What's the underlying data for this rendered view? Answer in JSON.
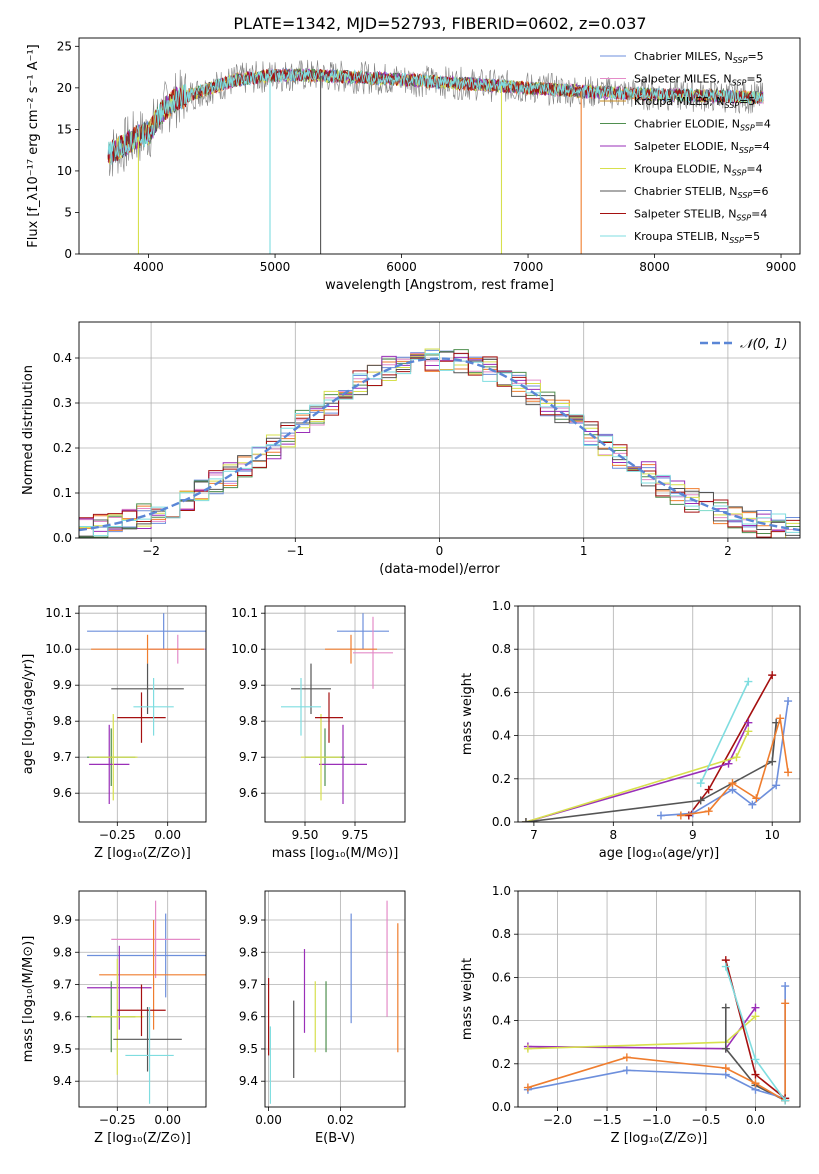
{
  "figure_title": "PLATE=1342, MJD=52793, FIBERID=0602, z=0.037",
  "colors": {
    "Chabrier MILES": "#6d8fdc",
    "Salpeter MILES": "#e48bc8",
    "Kroupa MILES": "#c68a1c",
    "Chabrier ELODIE": "#4f8f4f",
    "Salpeter ELODIE": "#9a2fb8",
    "Kroupa ELODIE": "#d7e04d",
    "Chabrier STELIB": "#555555",
    "Salpeter STELIB": "#a51010",
    "Kroupa STELIB": "#7fdde0",
    "orange": "#ef7d2e",
    "gaussian": "#5a86d6"
  },
  "chart_data": [
    {
      "id": "spectrum",
      "type": "line",
      "xlabel": "wavelength [Angstrom, rest frame]",
      "ylabel": "Flux [f_λ10⁻¹⁷ erg cm⁻² s⁻¹ A⁻¹]",
      "xlim": [
        3450,
        9150
      ],
      "ylim": [
        0,
        26
      ],
      "xticks": [
        4000,
        5000,
        6000,
        7000,
        8000,
        9000
      ],
      "yticks": [
        0,
        5,
        10,
        15,
        20,
        25
      ],
      "grid": false,
      "legend_position": "top-right",
      "legend": [
        {
          "label": "Chabrier MILES, N",
          "sub": "SSP",
          "suffix": "=5",
          "color": "#6d8fdc"
        },
        {
          "label": "Salpeter MILES, N",
          "sub": "SSP",
          "suffix": "=5",
          "color": "#e48bc8"
        },
        {
          "label": "Kroupa MILES, N",
          "sub": "SSP",
          "suffix": "=5",
          "color": "#c68a1c"
        },
        {
          "label": "Chabrier ELODIE, N",
          "sub": "SSP",
          "suffix": "=4",
          "color": "#4f8f4f"
        },
        {
          "label": "Salpeter ELODIE, N",
          "sub": "SSP",
          "suffix": "=4",
          "color": "#9a2fb8"
        },
        {
          "label": "Kroupa ELODIE, N",
          "sub": "SSP",
          "suffix": "=4",
          "color": "#d7e04d"
        },
        {
          "label": "Chabrier STELIB, N",
          "sub": "SSP",
          "suffix": "=6",
          "color": "#555555"
        },
        {
          "label": "Salpeter STELIB, N",
          "sub": "SSP",
          "suffix": "=4",
          "color": "#a51010"
        },
        {
          "label": "Kroupa STELIB, N",
          "sub": "SSP",
          "suffix": "=5",
          "color": "#7fdde0"
        }
      ],
      "continuum": {
        "x": [
          3680,
          3800,
          3900,
          4000,
          4100,
          4200,
          4300,
          4500,
          4700,
          5000,
          5300,
          5600,
          6000,
          6500,
          7000,
          7500,
          8000,
          8500,
          8850
        ],
        "y": [
          12,
          13,
          14,
          14.5,
          17,
          18.5,
          19,
          20,
          21,
          21.5,
          21.5,
          21.3,
          21,
          20.5,
          20,
          19.5,
          19.2,
          19.0,
          18.8
        ]
      },
      "spikes": [
        {
          "x": 3920,
          "y": 0,
          "color": "#d7e04d"
        },
        {
          "x": 4960,
          "y": 0,
          "color": "#7fdde0"
        },
        {
          "x": 5360,
          "y": 0,
          "color": "#555555"
        },
        {
          "x": 6790,
          "y": 0,
          "color": "#d7e04d"
        },
        {
          "x": 7420,
          "y": 0,
          "color": "#ef7d2e"
        }
      ]
    },
    {
      "id": "residual_hist",
      "type": "line",
      "xlabel": "(data-model)/error",
      "ylabel": "Normed distribution",
      "xlim": [
        -2.5,
        2.5
      ],
      "ylim": [
        0,
        0.48
      ],
      "xticks": [
        -2,
        -1,
        0,
        1,
        2
      ],
      "yticks": [
        0.0,
        0.1,
        0.2,
        0.3,
        0.4
      ],
      "grid": true,
      "legend_position": "top-right",
      "legend": [
        {
          "label": "N(0,1)",
          "color": "#5a86d6"
        }
      ],
      "bin_width": 0.1,
      "gaussian": {
        "mean": 0,
        "sigma": 1
      }
    },
    {
      "id": "age_vs_Z",
      "type": "scatter",
      "xlabel": "Z [log₁₀(Z/Z⊙)]",
      "ylabel": "age  [log₁₀(age/yr)]",
      "xlim": [
        -0.44,
        0.19
      ],
      "ylim": [
        9.52,
        10.12
      ],
      "xticks": [
        -0.25,
        0.0
      ],
      "yticks": [
        9.6,
        9.7,
        9.8,
        9.9,
        10.0,
        10.1
      ],
      "grid": true,
      "points": [
        {
          "x": -0.02,
          "y": 10.05,
          "ex": 0.38,
          "ey": 0.05,
          "color": "#6d8fdc"
        },
        {
          "x": 0.05,
          "y": 10.0,
          "ex": 0.14,
          "ey": 0.04,
          "color": "#e48bc8"
        },
        {
          "x": -0.1,
          "y": 10.0,
          "ex": 0.28,
          "ey": 0.04,
          "color": "#ef7d2e"
        },
        {
          "x": -0.28,
          "y": 9.7,
          "ex": 0.12,
          "ey": 0.08,
          "color": "#4f8f4f"
        },
        {
          "x": -0.29,
          "y": 9.68,
          "ex": 0.1,
          "ey": 0.11,
          "color": "#9a2fb8"
        },
        {
          "x": -0.27,
          "y": 9.7,
          "ex": 0.12,
          "ey": 0.12,
          "color": "#d7e04d"
        },
        {
          "x": -0.1,
          "y": 9.89,
          "ex": 0.18,
          "ey": 0.07,
          "color": "#555555"
        },
        {
          "x": -0.13,
          "y": 9.81,
          "ex": 0.12,
          "ey": 0.07,
          "color": "#a51010"
        },
        {
          "x": -0.07,
          "y": 9.84,
          "ex": 0.1,
          "ey": 0.08,
          "color": "#7fdde0"
        }
      ]
    },
    {
      "id": "age_vs_mass",
      "type": "scatter",
      "xlabel": "mass [log₁₀(M/M⊙)]",
      "ylabel": "",
      "xlim": [
        9.3,
        10.0
      ],
      "ylim": [
        9.52,
        10.12
      ],
      "xticks": [
        9.5,
        9.75
      ],
      "yticks": [
        9.6,
        9.7,
        9.8,
        9.9,
        10.0,
        10.1
      ],
      "grid": true,
      "points": [
        {
          "x": 9.79,
          "y": 10.05,
          "ex": 0.13,
          "ey": 0.05,
          "color": "#6d8fdc"
        },
        {
          "x": 9.84,
          "y": 9.99,
          "ex": 0.1,
          "ey": 0.1,
          "color": "#e48bc8"
        },
        {
          "x": 9.73,
          "y": 10.0,
          "ex": 0.13,
          "ey": 0.04,
          "color": "#ef7d2e"
        },
        {
          "x": 9.6,
          "y": 9.7,
          "ex": 0.1,
          "ey": 0.08,
          "color": "#4f8f4f"
        },
        {
          "x": 9.69,
          "y": 9.68,
          "ex": 0.12,
          "ey": 0.11,
          "color": "#9a2fb8"
        },
        {
          "x": 9.58,
          "y": 9.7,
          "ex": 0.1,
          "ey": 0.12,
          "color": "#d7e04d"
        },
        {
          "x": 9.53,
          "y": 9.89,
          "ex": 0.1,
          "ey": 0.07,
          "color": "#555555"
        },
        {
          "x": 9.62,
          "y": 9.81,
          "ex": 0.07,
          "ey": 0.07,
          "color": "#a51010"
        },
        {
          "x": 9.48,
          "y": 9.84,
          "ex": 0.1,
          "ey": 0.08,
          "color": "#7fdde0"
        }
      ]
    },
    {
      "id": "massweight_vs_age",
      "type": "line",
      "xlabel": "age  [log₁₀(age/yr)]",
      "ylabel": "mass weight",
      "xlim": [
        6.8,
        10.35
      ],
      "ylim": [
        0,
        1.0
      ],
      "xticks": [
        7,
        8,
        9,
        10
      ],
      "yticks": [
        0.0,
        0.2,
        0.4,
        0.6,
        0.8,
        1.0
      ],
      "grid": true,
      "series": [
        {
          "color": "#a51010",
          "points": [
            [
              8.95,
              0.03
            ],
            [
              9.2,
              0.15
            ],
            [
              10.0,
              0.68
            ]
          ]
        },
        {
          "color": "#9a2fb8",
          "points": [
            [
              6.9,
              0.0
            ],
            [
              9.45,
              0.27
            ],
            [
              9.7,
              0.46
            ]
          ]
        },
        {
          "color": "#d7e04d",
          "points": [
            [
              6.9,
              0.0
            ],
            [
              9.55,
              0.3
            ],
            [
              9.7,
              0.42
            ]
          ]
        },
        {
          "color": "#555555",
          "points": [
            [
              6.9,
              0.0
            ],
            [
              9.1,
              0.1
            ],
            [
              10.0,
              0.28
            ],
            [
              10.05,
              0.46
            ]
          ]
        },
        {
          "color": "#6d8fdc",
          "points": [
            [
              8.6,
              0.03
            ],
            [
              9.0,
              0.04
            ],
            [
              9.5,
              0.15
            ],
            [
              9.75,
              0.08
            ],
            [
              10.05,
              0.17
            ],
            [
              10.2,
              0.56
            ]
          ]
        },
        {
          "color": "#ef7d2e",
          "points": [
            [
              8.85,
              0.03
            ],
            [
              9.2,
              0.05
            ],
            [
              9.5,
              0.18
            ],
            [
              9.8,
              0.11
            ],
            [
              10.1,
              0.48
            ],
            [
              10.2,
              0.23
            ]
          ]
        },
        {
          "color": "#7fdde0",
          "points": [
            [
              9.1,
              0.18
            ],
            [
              9.7,
              0.65
            ]
          ]
        }
      ]
    },
    {
      "id": "mass_vs_Z",
      "type": "scatter",
      "xlabel": "Z [log₁₀(Z/Z⊙)]",
      "ylabel": "mass [log₁₀(M/M⊙)]",
      "xlim": [
        -0.44,
        0.19
      ],
      "ylim": [
        9.32,
        9.99
      ],
      "xticks": [
        -0.25,
        0.0
      ],
      "yticks": [
        9.4,
        9.5,
        9.6,
        9.7,
        9.8,
        9.9
      ],
      "grid": true,
      "points": [
        {
          "x": -0.01,
          "y": 9.79,
          "ex": 0.39,
          "ey": 0.13,
          "color": "#6d8fdc"
        },
        {
          "x": -0.06,
          "y": 9.84,
          "ex": 0.22,
          "ey": 0.12,
          "color": "#e48bc8"
        },
        {
          "x": -0.07,
          "y": 9.73,
          "ex": 0.27,
          "ey": 0.17,
          "color": "#ef7d2e"
        },
        {
          "x": -0.28,
          "y": 9.6,
          "ex": 0.12,
          "ey": 0.11,
          "color": "#4f8f4f"
        },
        {
          "x": -0.24,
          "y": 9.69,
          "ex": 0.16,
          "ey": 0.13,
          "color": "#9a2fb8"
        },
        {
          "x": -0.25,
          "y": 9.6,
          "ex": 0.13,
          "ey": 0.18,
          "color": "#d7e04d"
        },
        {
          "x": -0.1,
          "y": 9.53,
          "ex": 0.17,
          "ey": 0.1,
          "color": "#555555"
        },
        {
          "x": -0.13,
          "y": 9.62,
          "ex": 0.12,
          "ey": 0.08,
          "color": "#a51010"
        },
        {
          "x": -0.09,
          "y": 9.48,
          "ex": 0.12,
          "ey": 0.15,
          "color": "#7fdde0"
        }
      ]
    },
    {
      "id": "mass_vs_ebv",
      "type": "scatter",
      "xlabel": "E(B-V)",
      "ylabel": "",
      "xlim": [
        -0.001,
        0.038
      ],
      "ylim": [
        9.32,
        9.99
      ],
      "xticks": [
        0.0,
        0.02
      ],
      "yticks": [
        9.4,
        9.5,
        9.6,
        9.7,
        9.8,
        9.9
      ],
      "grid": true,
      "points": [
        {
          "x": 0.0,
          "y": 9.6,
          "ex": 0,
          "ey": 0.12,
          "color": "#a51010"
        },
        {
          "x": 0.0005,
          "y": 9.45,
          "ex": 0,
          "ey": 0.12,
          "color": "#7fdde0"
        },
        {
          "x": 0.007,
          "y": 9.53,
          "ex": 0,
          "ey": 0.12,
          "color": "#555555"
        },
        {
          "x": 0.01,
          "y": 9.68,
          "ex": 0,
          "ey": 0.13,
          "color": "#9a2fb8"
        },
        {
          "x": 0.013,
          "y": 9.6,
          "ex": 0,
          "ey": 0.11,
          "color": "#d7e04d"
        },
        {
          "x": 0.016,
          "y": 9.6,
          "ex": 0,
          "ey": 0.11,
          "color": "#4f8f4f"
        },
        {
          "x": 0.023,
          "y": 9.75,
          "ex": 0,
          "ey": 0.17,
          "color": "#6d8fdc"
        },
        {
          "x": 0.033,
          "y": 9.78,
          "ex": 0,
          "ey": 0.18,
          "color": "#e48bc8"
        },
        {
          "x": 0.036,
          "y": 9.69,
          "ex": 0,
          "ey": 0.2,
          "color": "#ef7d2e"
        }
      ]
    },
    {
      "id": "massweight_vs_Z",
      "type": "line",
      "xlabel": "Z [log₁₀(Z/Z⊙)]",
      "ylabel": "mass weight",
      "xlim": [
        -2.4,
        0.45
      ],
      "ylim": [
        0,
        1.0
      ],
      "xticks": [
        -2.0,
        -1.5,
        -1.0,
        -0.5,
        0.0
      ],
      "yticks": [
        0.0,
        0.2,
        0.4,
        0.6,
        0.8,
        1.0
      ],
      "grid": true,
      "series": [
        {
          "color": "#9a2fb8",
          "points": [
            [
              -2.3,
              0.28
            ],
            [
              -0.3,
              0.27
            ],
            [
              0.0,
              0.46
            ]
          ]
        },
        {
          "color": "#d7e04d",
          "points": [
            [
              -2.3,
              0.27
            ],
            [
              -0.3,
              0.3
            ],
            [
              0.0,
              0.42
            ]
          ]
        },
        {
          "color": "#555555",
          "points": [
            [
              -0.3,
              0.46
            ],
            [
              -0.3,
              0.27
            ],
            [
              0.0,
              0.1
            ],
            [
              0.3,
              0.03
            ]
          ]
        },
        {
          "color": "#6d8fdc",
          "points": [
            [
              -2.3,
              0.08
            ],
            [
              -1.3,
              0.17
            ],
            [
              -0.3,
              0.15
            ],
            [
              0.0,
              0.08
            ],
            [
              0.3,
              0.04
            ],
            [
              0.3,
              0.56
            ]
          ]
        },
        {
          "color": "#ef7d2e",
          "points": [
            [
              -2.3,
              0.09
            ],
            [
              -1.3,
              0.23
            ],
            [
              -0.3,
              0.18
            ],
            [
              0.0,
              0.11
            ],
            [
              0.3,
              0.03
            ],
            [
              0.3,
              0.48
            ]
          ]
        },
        {
          "color": "#a51010",
          "points": [
            [
              -0.3,
              0.68
            ],
            [
              0.0,
              0.15
            ],
            [
              0.3,
              0.04
            ]
          ]
        },
        {
          "color": "#7fdde0",
          "points": [
            [
              -0.3,
              0.65
            ],
            [
              0.0,
              0.22
            ],
            [
              0.3,
              0.03
            ]
          ]
        }
      ]
    }
  ]
}
